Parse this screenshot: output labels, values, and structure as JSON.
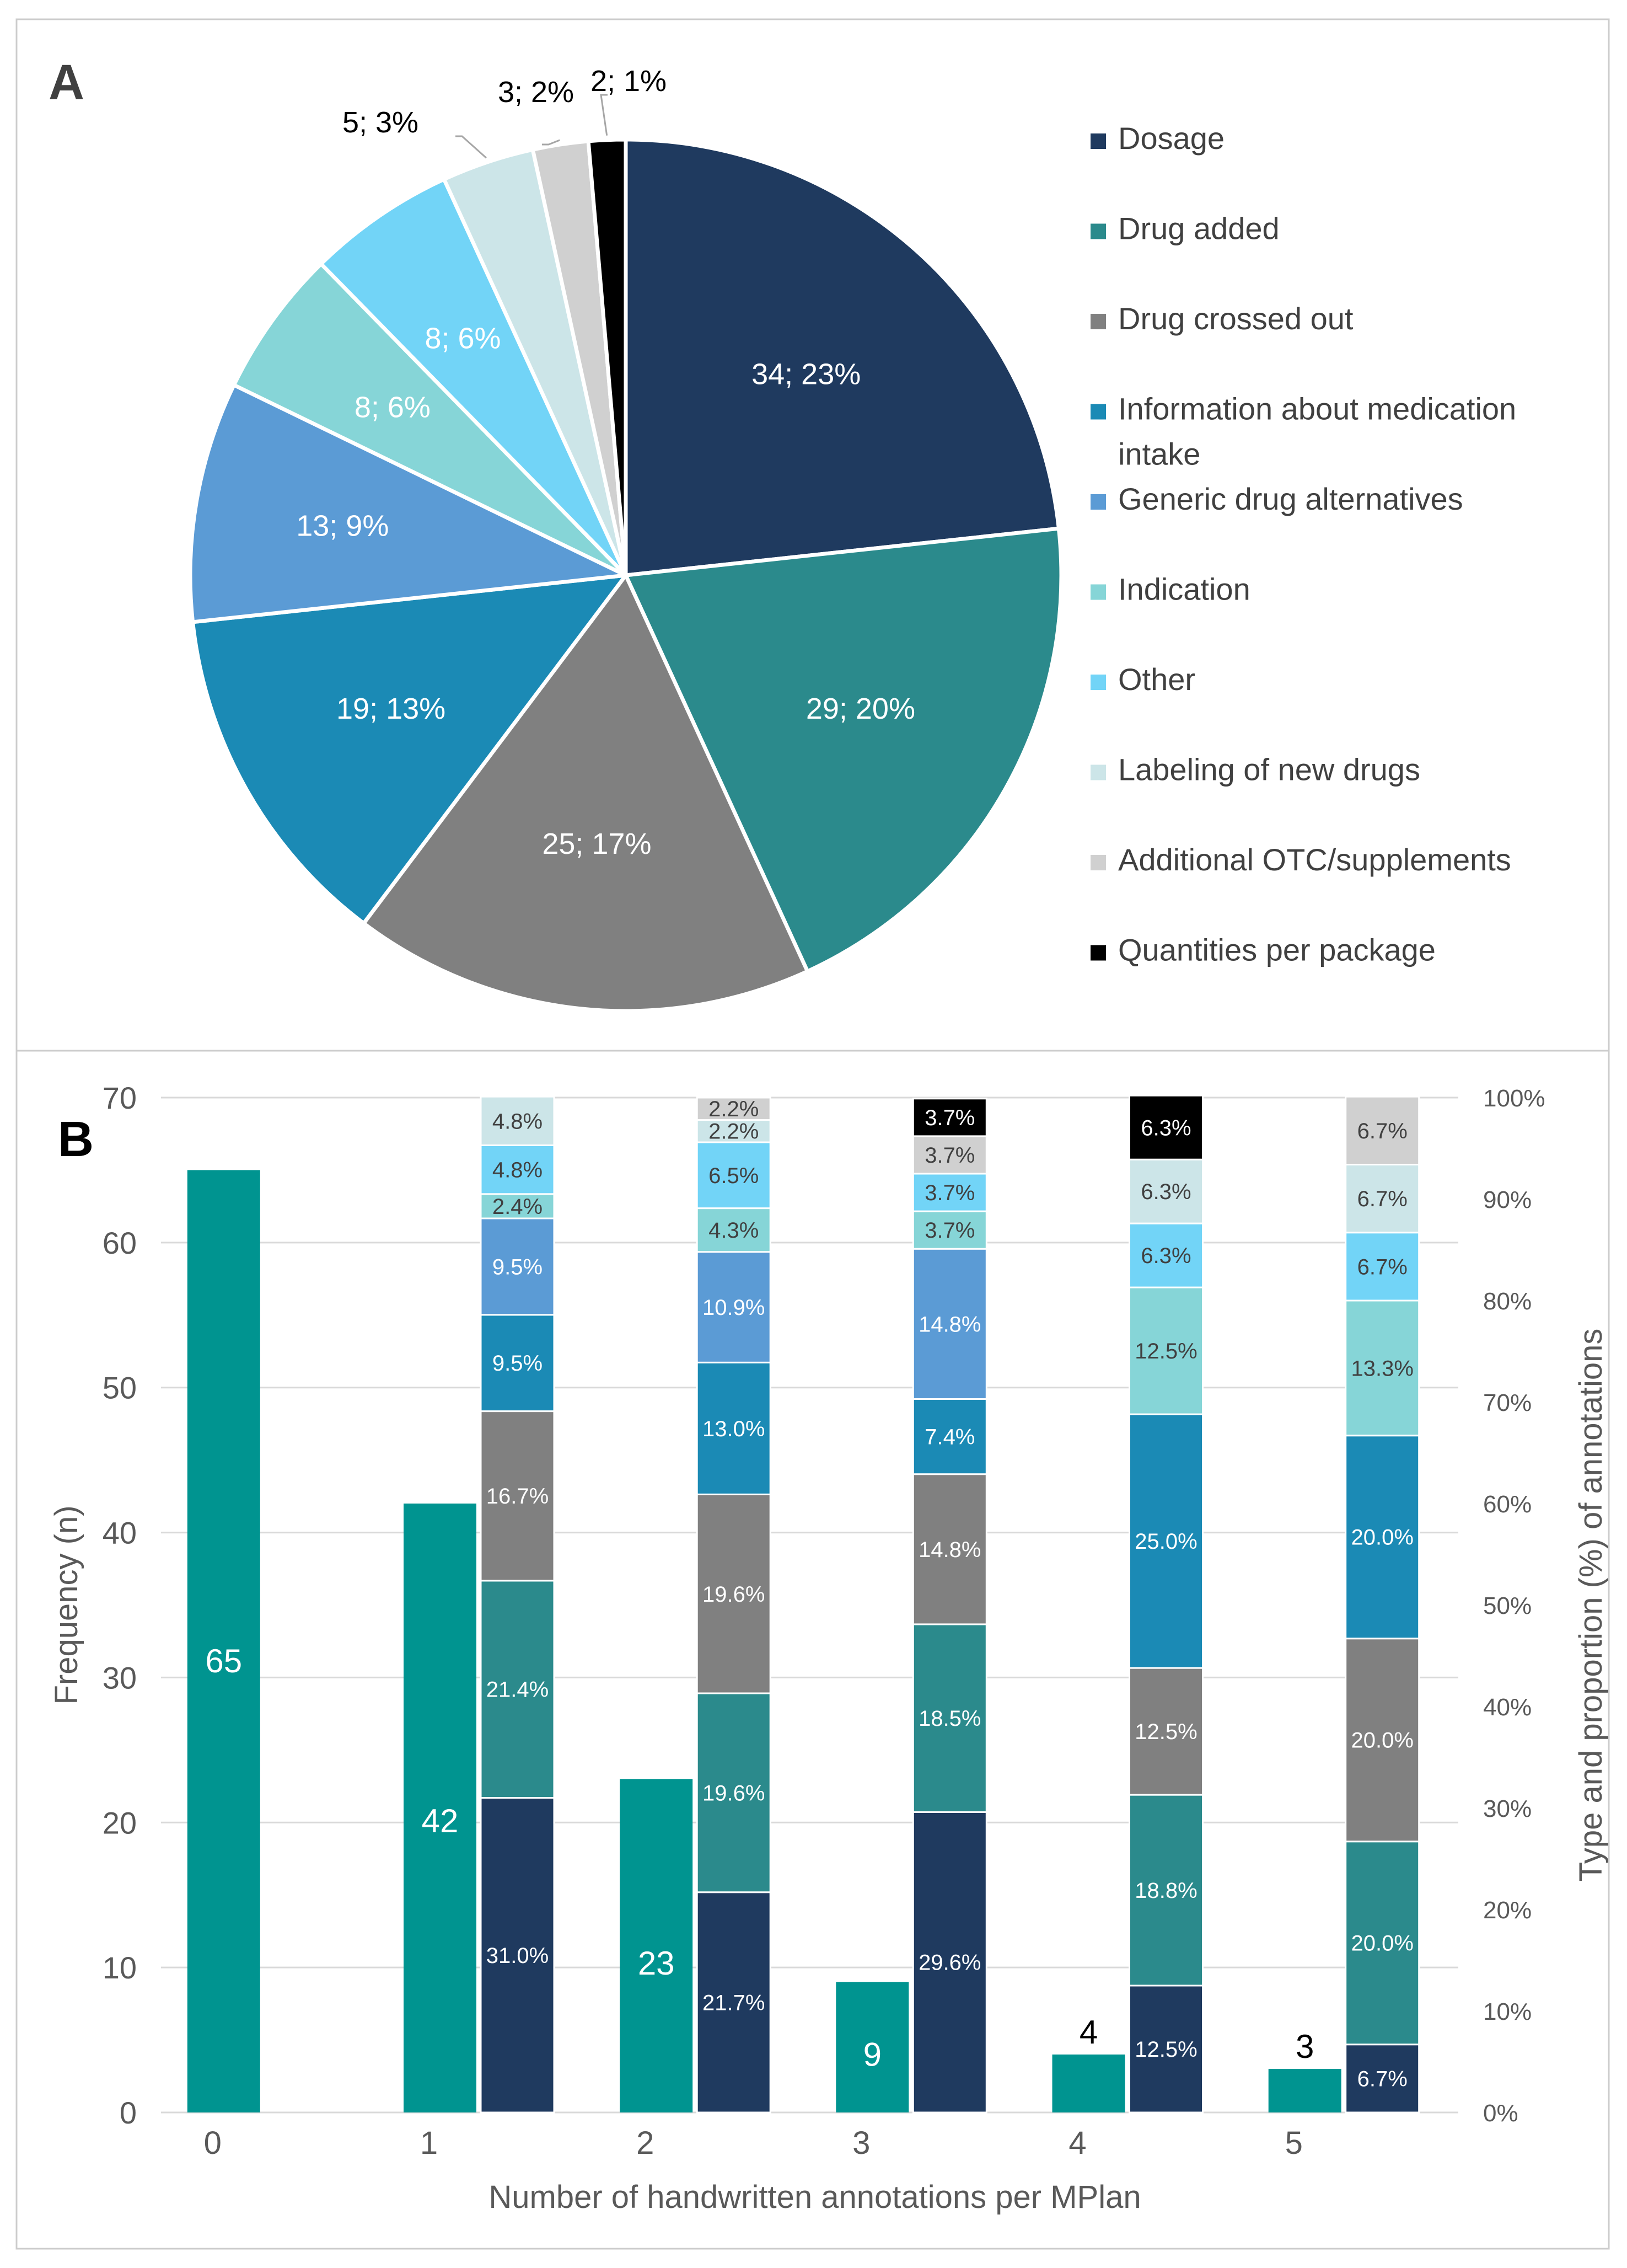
{
  "chart_data": [
    {
      "panel": "A",
      "type": "pie",
      "title": "",
      "legend_position": "right",
      "categories": [
        "Dosage",
        "Drug added",
        "Drug crossed out",
        "Information about medication intake",
        "Generic drug alternatives",
        "Indication",
        "Other",
        "Labeling of new drugs",
        "Additional OTC/supplements",
        "Quantities per package"
      ],
      "values": [
        34,
        29,
        25,
        19,
        13,
        8,
        8,
        5,
        3,
        2
      ],
      "labels": [
        "34; 23%",
        "29; 20%",
        "25; 17%",
        "19; 13%",
        "13; 9%",
        "8; 6%",
        "8; 6%",
        "5; 3%",
        "3; 2%",
        "2; 1%"
      ],
      "colors": [
        "#1f3a5f",
        "#2b8a8c",
        "#808080",
        "#1b8ab5",
        "#5b9bd5",
        "#86d5d7",
        "#72d4f7",
        "#cce5e8",
        "#d0d0d0",
        "#000000"
      ]
    },
    {
      "panel": "B",
      "type": "bar",
      "title": "",
      "xlabel": "Number of handwritten annotations per MPlan",
      "ylabel": "Frequency (n)",
      "ylabel_right": "Type and proportion (%) of annotations",
      "categories": [
        "0",
        "1",
        "2",
        "3",
        "4",
        "5"
      ],
      "ylim": [
        0,
        70
      ],
      "yticks": [
        "0",
        "10",
        "20",
        "30",
        "40",
        "50",
        "60",
        "70"
      ],
      "y2lim": [
        0,
        100
      ],
      "y2ticks": [
        "0%",
        "10%",
        "20%",
        "30%",
        "40%",
        "50%",
        "60%",
        "70%",
        "80%",
        "90%",
        "100%"
      ],
      "frequency": {
        "name": "Frequency (n)",
        "color": "#009490",
        "values": [
          65,
          42,
          23,
          9,
          4,
          3
        ],
        "labels": [
          "65",
          "42",
          "23",
          "9",
          "4",
          "3"
        ]
      },
      "stacked_series": [
        {
          "name": "Dosage",
          "color": "#1f3a5f",
          "values": [
            null,
            31.0,
            21.7,
            29.6,
            12.5,
            6.7
          ],
          "labels": [
            "",
            "31.0%",
            "21.7%",
            "29.6%",
            "12.5%",
            "6.7%"
          ]
        },
        {
          "name": "Drug added",
          "color": "#2b8a8c",
          "values": [
            null,
            21.4,
            19.6,
            18.5,
            18.8,
            20.0
          ],
          "labels": [
            "",
            "21.4%",
            "19.6%",
            "18.5%",
            "18.8%",
            "20.0%"
          ]
        },
        {
          "name": "Drug crossed out",
          "color": "#808080",
          "values": [
            null,
            16.7,
            19.6,
            14.8,
            12.5,
            20.0
          ],
          "labels": [
            "",
            "16.7%",
            "19.6%",
            "14.8%",
            "12.5%",
            "20.0%"
          ]
        },
        {
          "name": "Information about medication intake",
          "color": "#1b8ab5",
          "values": [
            null,
            9.5,
            13.0,
            7.4,
            25.0,
            20.0
          ],
          "labels": [
            "",
            "9.5%",
            "13.0%",
            "7.4%",
            "25.0%",
            "20.0%"
          ]
        },
        {
          "name": "Generic drug alternatives",
          "color": "#5b9bd5",
          "values": [
            null,
            9.5,
            10.9,
            14.8,
            null,
            null
          ],
          "labels": [
            "",
            "9.5%",
            "10.9%",
            "14.8%",
            "",
            ""
          ]
        },
        {
          "name": "Indication",
          "color": "#86d5d7",
          "values": [
            null,
            2.4,
            4.3,
            3.7,
            12.5,
            13.3
          ],
          "labels": [
            "",
            "2.4%",
            "4.3%",
            "3.7%",
            "12.5%",
            "13.3%"
          ]
        },
        {
          "name": "Other",
          "color": "#72d4f7",
          "values": [
            null,
            4.8,
            6.5,
            3.7,
            6.3,
            6.7
          ],
          "labels": [
            "",
            "4.8%",
            "6.5%",
            "3.7%",
            "6.3%",
            "6.7%"
          ]
        },
        {
          "name": "Labeling of new drugs",
          "color": "#cce5e8",
          "values": [
            null,
            4.8,
            2.2,
            null,
            6.3,
            6.7
          ],
          "labels": [
            "",
            "4.8%",
            "2.2%",
            "",
            "6.3%",
            "6.7%"
          ]
        },
        {
          "name": "Additional OTC/supplements",
          "color": "#d0d0d0",
          "values": [
            null,
            null,
            2.2,
            3.7,
            null,
            6.7
          ],
          "labels": [
            "",
            "",
            "2.2%",
            "3.7%",
            "",
            "6.7%"
          ]
        },
        {
          "name": "Quantities per package",
          "color": "#000000",
          "values": [
            null,
            null,
            null,
            3.7,
            6.3,
            null
          ],
          "labels": [
            "",
            "",
            "",
            "3.7%",
            "6.3%",
            ""
          ]
        }
      ]
    }
  ],
  "panel_labels": {
    "a": "A",
    "b": "B"
  }
}
